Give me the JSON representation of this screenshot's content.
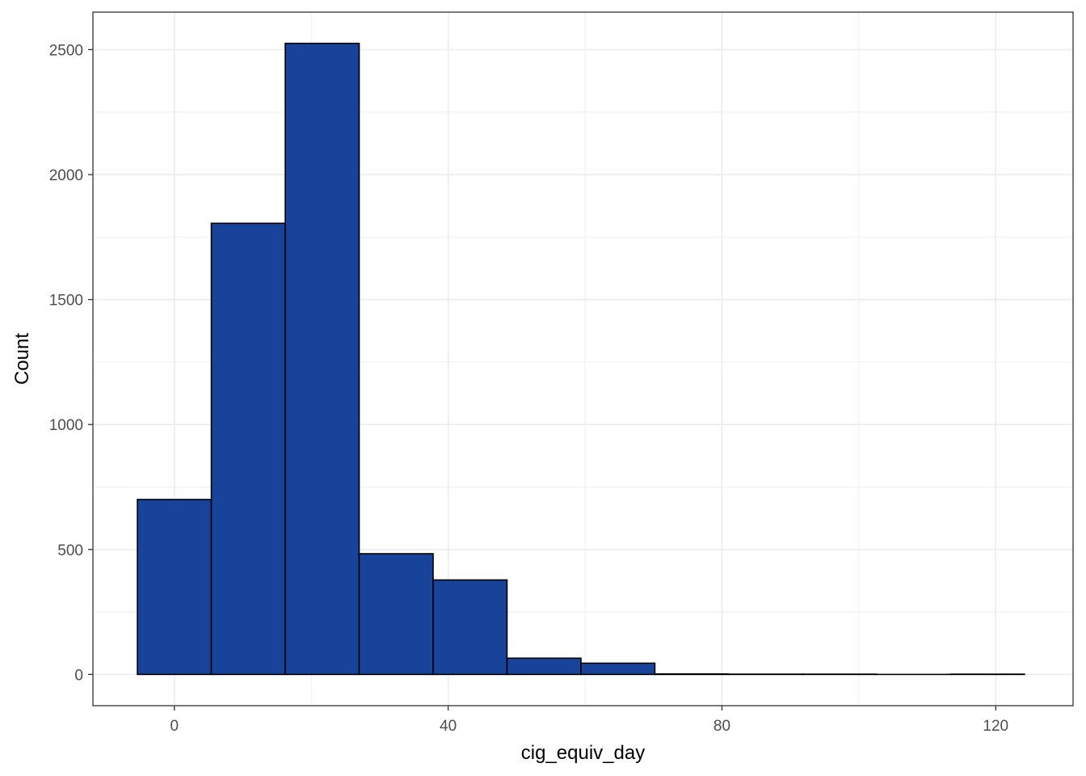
{
  "chart_data": {
    "type": "bar",
    "subtype": "histogram",
    "xlabel": "cig_equiv_day",
    "ylabel": "Count",
    "x_ticks": [
      0,
      40,
      80,
      120
    ],
    "y_ticks": [
      0,
      500,
      1000,
      1500,
      2000,
      2500
    ],
    "xlim": [
      -11.9,
      131.3
    ],
    "ylim": [
      -125,
      2650
    ],
    "bin_width": 10.8,
    "bins": [
      {
        "x0": -5.4,
        "x1": 5.4,
        "count": 700
      },
      {
        "x0": 5.4,
        "x1": 16.2,
        "count": 1805
      },
      {
        "x0": 16.2,
        "x1": 27.0,
        "count": 2525
      },
      {
        "x0": 27.0,
        "x1": 37.8,
        "count": 483
      },
      {
        "x0": 37.8,
        "x1": 48.6,
        "count": 378
      },
      {
        "x0": 48.6,
        "x1": 59.4,
        "count": 65
      },
      {
        "x0": 59.4,
        "x1": 70.2,
        "count": 45
      },
      {
        "x0": 70.2,
        "x1": 81.0,
        "count": 2
      },
      {
        "x0": 81.0,
        "x1": 91.8,
        "count": 1
      },
      {
        "x0": 91.8,
        "x1": 102.6,
        "count": 1
      },
      {
        "x0": 102.6,
        "x1": 113.4,
        "count": 0
      },
      {
        "x0": 113.4,
        "x1": 124.2,
        "count": 1
      }
    ],
    "bar_fill": "#17449a",
    "bar_stroke": "#000000",
    "grid": true,
    "grid_color": "#ebebeb",
    "panel_border_color": "#333333",
    "legend": "none"
  }
}
